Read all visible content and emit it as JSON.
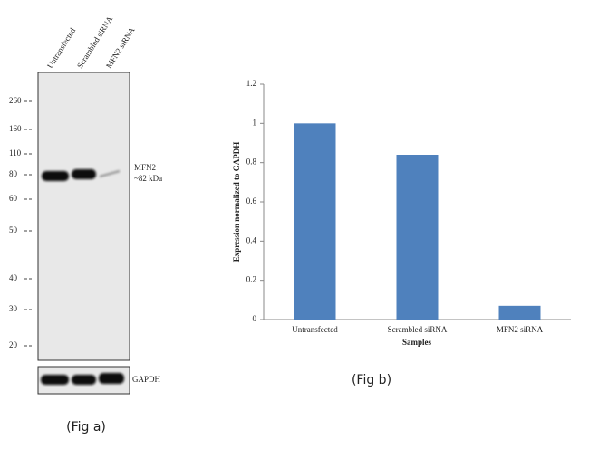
{
  "blot": {
    "lanes": [
      "Untransfected",
      "Scrambled siRNA",
      "MFN2 siRNA"
    ],
    "markers": [
      260,
      160,
      110,
      80,
      60,
      50,
      40,
      30,
      20
    ],
    "band_label": "MFN2",
    "band_size": "~82 kDa",
    "control_label": "GAPDH",
    "caption": "(Fig a)"
  },
  "chart_data": {
    "type": "bar",
    "categories": [
      "Untransfected",
      "Scrambled siRNA",
      "MFN2 siRNA"
    ],
    "values": [
      1.0,
      0.84,
      0.07
    ],
    "color": "#4f81bd",
    "ylim": [
      0,
      1.2
    ],
    "yticks": [
      0,
      0.2,
      0.4,
      0.6,
      0.8,
      1,
      1.2
    ],
    "y_label": "Expression normalized to GAPDH",
    "x_label": "Samples",
    "caption": "(Fig b)"
  }
}
